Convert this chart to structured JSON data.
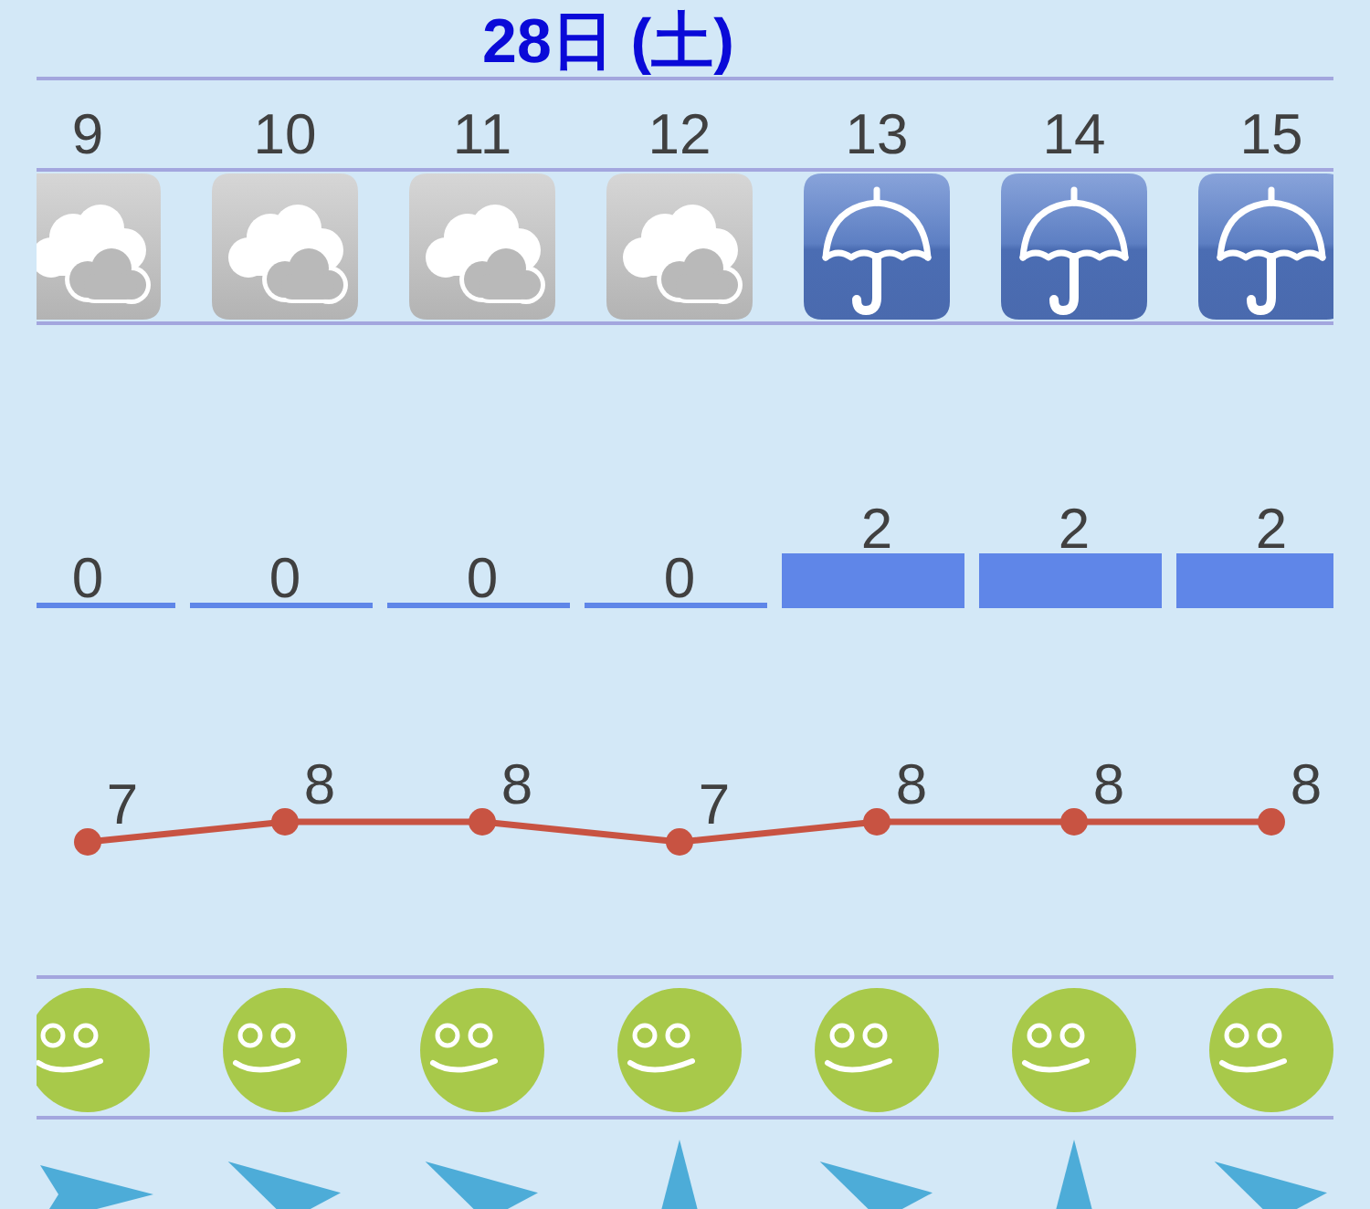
{
  "chart_data": [
    {
      "type": "bar",
      "title": "28日 (土)",
      "categories": [
        "9",
        "10",
        "11",
        "12",
        "13",
        "14",
        "15"
      ],
      "values": [
        0,
        0,
        0,
        0,
        2,
        2,
        2
      ],
      "color": "#5f86e8",
      "data_labels": true
    },
    {
      "type": "line",
      "categories": [
        "9",
        "10",
        "11",
        "12",
        "13",
        "14",
        "15"
      ],
      "values": [
        7,
        8,
        8,
        7,
        8,
        8,
        8
      ],
      "color": "#c85342",
      "marker": "circle",
      "data_labels": true,
      "tick_labels": false
    }
  ]
}
